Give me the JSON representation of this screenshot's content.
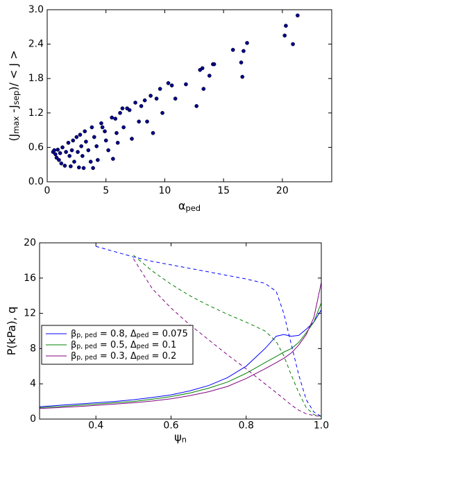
{
  "chart_data": [
    {
      "type": "scatter",
      "xlabel": [
        "α",
        "ped"
      ],
      "ylabel": [
        "(J",
        "max",
        " -J",
        "sep",
        ")/ < J >"
      ],
      "xlim": [
        0,
        24.2
      ],
      "xticks": [
        0,
        5,
        10,
        15,
        20
      ],
      "ylim": [
        0,
        3.0
      ],
      "yticks": [
        {
          "value": 0,
          "label": "0.0"
        },
        0.6,
        1.2,
        1.8,
        2.4,
        {
          "value": 3.0,
          "label": "3.0"
        }
      ],
      "color": "#00008b",
      "x": [
        0.5,
        0.6,
        0.7,
        0.8,
        0.9,
        1.0,
        1.1,
        1.2,
        1.3,
        1.5,
        1.6,
        1.8,
        1.9,
        2.0,
        2.1,
        2.2,
        2.3,
        2.5,
        2.6,
        2.7,
        2.8,
        2.9,
        3.0,
        3.1,
        3.2,
        3.3,
        3.5,
        3.7,
        3.8,
        3.9,
        4.0,
        4.2,
        4.3,
        4.6,
        4.7,
        4.9,
        5.0,
        5.2,
        5.5,
        5.6,
        5.8,
        5.9,
        6.0,
        6.2,
        6.4,
        6.5,
        6.8,
        7.0,
        7.2,
        7.5,
        7.8,
        8.0,
        8.3,
        8.5,
        8.8,
        9.0,
        9.3,
        9.6,
        9.8,
        10.3,
        10.6,
        10.9,
        11.8,
        12.7,
        13.0,
        13.2,
        13.3,
        13.8,
        14.1,
        14.2,
        15.8,
        16.5,
        16.6,
        16.7,
        17.0,
        20.2,
        20.3,
        20.9,
        21.3
      ],
      "values": [
        0.52,
        0.55,
        0.48,
        0.42,
        0.56,
        0.38,
        0.5,
        0.32,
        0.6,
        0.28,
        0.52,
        0.68,
        0.45,
        0.27,
        0.55,
        0.72,
        0.35,
        0.78,
        0.52,
        0.25,
        0.82,
        0.62,
        0.45,
        0.24,
        0.88,
        0.7,
        0.55,
        0.35,
        0.95,
        0.24,
        0.78,
        0.62,
        0.38,
        1.02,
        0.95,
        0.88,
        0.72,
        0.55,
        1.12,
        0.4,
        1.1,
        0.85,
        0.68,
        1.2,
        1.28,
        0.95,
        1.28,
        1.25,
        0.75,
        1.38,
        1.05,
        1.32,
        1.42,
        1.05,
        1.5,
        0.85,
        1.45,
        1.62,
        1.2,
        1.72,
        1.68,
        1.45,
        1.7,
        1.32,
        1.95,
        1.98,
        1.62,
        1.85,
        2.05,
        2.05,
        2.3,
        2.08,
        1.83,
        2.28,
        2.42,
        2.55,
        2.72,
        2.4,
        2.9
      ]
    },
    {
      "type": "line",
      "xlabel": [
        "ψ",
        "n"
      ],
      "ylabel": [
        "P(kPa), q"
      ],
      "xlim": [
        0.25,
        1.0
      ],
      "xticks": [
        0.4,
        0.6,
        0.8,
        {
          "value": 1.0,
          "label": "1.0"
        }
      ],
      "ylim": [
        0,
        20
      ],
      "yticks": [
        0,
        4,
        8,
        12,
        16,
        20
      ],
      "legend": "left",
      "x": [
        0.25,
        0.3,
        0.35,
        0.4,
        0.45,
        0.5,
        0.55,
        0.6,
        0.65,
        0.7,
        0.75,
        0.8,
        0.85,
        0.88,
        0.9,
        0.92,
        0.94,
        0.96,
        0.98,
        1.0
      ],
      "series": [
        {
          "name": [
            "β",
            "p, ped",
            " = 0.8, Δ",
            "ped",
            " = 0.075"
          ],
          "color": "#0000ff",
          "values": [
            1.4,
            1.55,
            1.7,
            1.85,
            2.0,
            2.2,
            2.45,
            2.75,
            3.2,
            3.8,
            4.7,
            6.0,
            8.0,
            9.4,
            9.6,
            9.4,
            9.5,
            10.2,
            11.0,
            12.4
          ]
        },
        {
          "name": [
            "β",
            "p, ped",
            " = 0.5, Δ",
            "ped",
            " = 0.1"
          ],
          "color": "#008000",
          "values": [
            1.3,
            1.42,
            1.55,
            1.7,
            1.85,
            2.0,
            2.25,
            2.55,
            2.95,
            3.5,
            4.2,
            5.2,
            6.4,
            7.1,
            7.6,
            8.0,
            8.7,
            9.8,
            11.0,
            13.2
          ]
        },
        {
          "name": [
            "β",
            "p, ped",
            " = 0.3, Δ",
            "ped",
            " = 0.2"
          ],
          "color": "#800080",
          "values": [
            1.2,
            1.3,
            1.42,
            1.55,
            1.7,
            1.85,
            2.05,
            2.3,
            2.65,
            3.1,
            3.7,
            4.6,
            5.7,
            6.4,
            6.9,
            7.5,
            8.4,
            9.6,
            11.5,
            15.5
          ]
        },
        {
          "color": "#0000ff",
          "dashed": true,
          "values": [
            null,
            null,
            null,
            19.6,
            19.0,
            18.4,
            17.9,
            17.5,
            17.1,
            16.7,
            16.3,
            15.9,
            15.4,
            14.5,
            12.0,
            8.5,
            5.0,
            2.2,
            0.8,
            0.3
          ]
        },
        {
          "color": "#008000",
          "dashed": true,
          "values": [
            null,
            null,
            null,
            null,
            null,
            18.6,
            16.8,
            15.3,
            14.0,
            12.9,
            11.9,
            11.0,
            10.0,
            8.8,
            7.2,
            5.0,
            3.0,
            1.3,
            0.5,
            0.3
          ]
        },
        {
          "color": "#800080",
          "dashed": true,
          "values": [
            null,
            null,
            null,
            null,
            null,
            18.2,
            14.8,
            12.6,
            10.7,
            9.0,
            7.3,
            5.7,
            4.0,
            3.0,
            2.3,
            1.6,
            1.0,
            0.6,
            0.4,
            0.3
          ]
        }
      ]
    }
  ]
}
